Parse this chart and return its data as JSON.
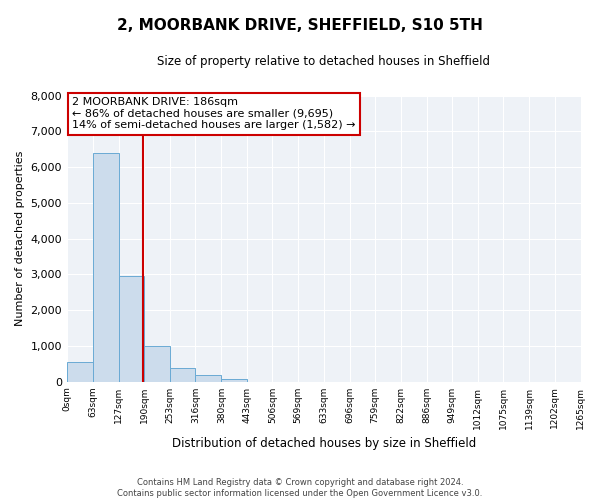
{
  "title": "2, MOORBANK DRIVE, SHEFFIELD, S10 5TH",
  "subtitle": "Size of property relative to detached houses in Sheffield",
  "xlabel": "Distribution of detached houses by size in Sheffield",
  "ylabel": "Number of detached properties",
  "bar_values": [
    550,
    6400,
    2950,
    1000,
    380,
    175,
    80,
    0,
    0,
    0,
    0,
    0,
    0,
    0,
    0,
    0,
    0,
    0,
    0,
    0
  ],
  "bin_edges": [
    0,
    63,
    127,
    190,
    253,
    316,
    380,
    443,
    506,
    569,
    633,
    696,
    759,
    822,
    886,
    949,
    1012,
    1075,
    1139,
    1202,
    1265
  ],
  "tick_labels": [
    "0sqm",
    "63sqm",
    "127sqm",
    "190sqm",
    "253sqm",
    "316sqm",
    "380sqm",
    "443sqm",
    "506sqm",
    "569sqm",
    "633sqm",
    "696sqm",
    "759sqm",
    "822sqm",
    "886sqm",
    "949sqm",
    "1012sqm",
    "1075sqm",
    "1139sqm",
    "1202sqm",
    "1265sqm"
  ],
  "property_size": 186,
  "bar_color": "#ccdcec",
  "bar_edge_color": "#6aaad4",
  "vline_color": "#cc0000",
  "annotation_box_edge_color": "#cc0000",
  "annotation_text_line1": "2 MOORBANK DRIVE: 186sqm",
  "annotation_text_line2": "← 86% of detached houses are smaller (9,695)",
  "annotation_text_line3": "14% of semi-detached houses are larger (1,582) →",
  "ylim": [
    0,
    8000
  ],
  "yticks": [
    0,
    1000,
    2000,
    3000,
    4000,
    5000,
    6000,
    7000,
    8000
  ],
  "footer_line1": "Contains HM Land Registry data © Crown copyright and database right 2024.",
  "footer_line2": "Contains public sector information licensed under the Open Government Licence v3.0.",
  "bg_color": "#ffffff",
  "plot_bg_color": "#eef2f7"
}
